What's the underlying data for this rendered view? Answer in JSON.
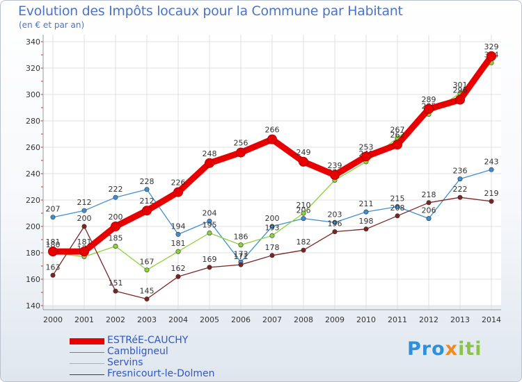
{
  "header": {
    "title": "Evolution des Impôts locaux pour la Commune par Habitant",
    "subtitle": "(en € et par an)"
  },
  "logo": {
    "part1": "Pro",
    "part2": "x",
    "part3": "iti"
  },
  "chart_data": {
    "type": "line",
    "title": "Evolution des Impôts locaux pour la Commune par Habitant",
    "subtitle": "(en € et par an)",
    "xlabel": "",
    "ylabel": "",
    "x": [
      2000,
      2001,
      2002,
      2003,
      2004,
      2005,
      2006,
      2007,
      2008,
      2009,
      2010,
      2011,
      2012,
      2013,
      2014
    ],
    "ylim": [
      140,
      340
    ],
    "yticks": [
      140,
      160,
      180,
      200,
      220,
      240,
      260,
      280,
      300,
      320,
      340
    ],
    "grid": true,
    "legend_position": "bottom-left",
    "series": [
      {
        "name": "Cambligneul",
        "color": "#3f8fd0",
        "values": [
          207,
          212,
          222,
          228,
          194,
          204,
          173,
          200,
          206,
          203,
          211,
          215,
          206,
          236,
          243
        ],
        "labels": [
          "207",
          "212",
          "222",
          "228",
          "194",
          "204",
          "173",
          "200",
          "206",
          "203",
          "211",
          "215",
          "206",
          "236",
          "243"
        ]
      },
      {
        "name": "Servins",
        "color": "#8cd23c",
        "values": [
          180,
          177,
          185,
          167,
          181,
          195,
          186,
          193,
          210,
          235,
          249,
          267,
          285,
          301,
          324
        ],
        "labels": [
          "180",
          "177",
          "185",
          "167",
          "181",
          "195",
          "186",
          "193",
          "210",
          "235",
          "249",
          "267",
          "285",
          "301",
          "324"
        ]
      },
      {
        "name": "Fresnicourt-le-Dolmen",
        "color": "#7a2424",
        "values": [
          163,
          200,
          151,
          145,
          162,
          169,
          171,
          178,
          182,
          196,
          198,
          208,
          218,
          222,
          219
        ],
        "labels": [
          "163",
          "200",
          "151",
          "145",
          "162",
          "169",
          "171",
          "178",
          "182",
          "196",
          "198",
          "208",
          "218",
          "222",
          "219"
        ]
      },
      {
        "name": "ESTRéE-CAUCHY",
        "color": "#e80000",
        "values": [
          181,
          181,
          200,
          212,
          226,
          248,
          256,
          266,
          249,
          239,
          253,
          262,
          289,
          296,
          329
        ],
        "labels": [
          "181",
          "181",
          "200",
          "212",
          "226",
          "248",
          "256",
          "266",
          "249",
          "239",
          "253",
          "262",
          "289",
          "296",
          "329"
        ]
      }
    ],
    "legend": [
      "ESTRéE-CAUCHY",
      "Cambligneul",
      "Servins",
      "Fresnicourt-le-Dolmen"
    ]
  }
}
